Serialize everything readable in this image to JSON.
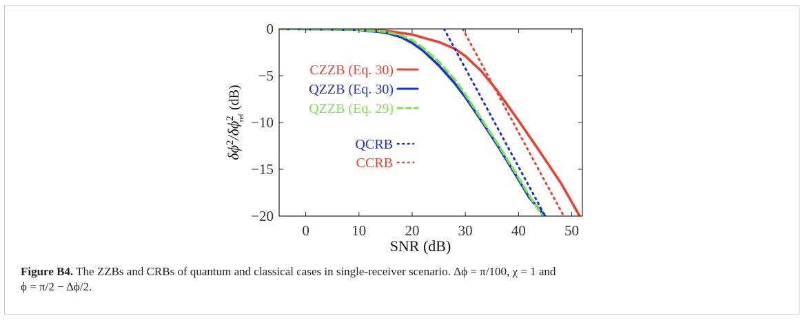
{
  "chart_data": {
    "type": "line",
    "xlabel": "SNR (dB)",
    "ylabel": {
      "main": "δϕ",
      "sup1": "2",
      "slash": "/δϕ",
      "sup2": "2",
      "sub2": "ref",
      "unit": " (dB)"
    },
    "xlim": [
      -5,
      52
    ],
    "ylim": [
      -20,
      0
    ],
    "xticks": [
      0,
      10,
      20,
      30,
      40,
      50
    ],
    "yticks": [
      0,
      -5,
      -10,
      -15,
      -20
    ],
    "xtick_labels": [
      "0",
      "10",
      "20",
      "30",
      "40",
      "50"
    ],
    "ytick_labels": [
      "0",
      "−5",
      "−10",
      "−15",
      "−20"
    ],
    "grid": false,
    "series": [
      {
        "name": "CZZB (Eq. 30)",
        "color": "#e8412f",
        "style": "solid",
        "x": [
          -5,
          10,
          15,
          20,
          25,
          28,
          30,
          33,
          36,
          40,
          44,
          48,
          51.5
        ],
        "y": [
          0,
          -0.05,
          -0.2,
          -0.6,
          -1.4,
          -2.1,
          -2.9,
          -4.5,
          -6.6,
          -9.8,
          -13.1,
          -16.5,
          -20
        ]
      },
      {
        "name": "QZZB (Eq. 30)",
        "color": "#1b2fd8",
        "style": "solid",
        "x": [
          -5,
          10,
          15,
          18,
          20,
          22,
          25,
          28,
          30,
          33,
          36,
          40,
          42,
          45
        ],
        "y": [
          0,
          -0.1,
          -0.4,
          -0.9,
          -1.5,
          -2.3,
          -3.9,
          -5.8,
          -7.3,
          -9.8,
          -12.4,
          -16.1,
          -18,
          -20
        ]
      },
      {
        "name": "QZZB (Eq. 29)",
        "color": "#77e650",
        "style": "dashed",
        "x": [
          -5,
          10,
          15,
          18,
          20,
          22,
          25,
          28,
          30,
          33,
          36,
          40,
          42,
          44.6
        ],
        "y": [
          0,
          -0.08,
          -0.3,
          -0.7,
          -1.2,
          -2.0,
          -3.5,
          -5.4,
          -7.0,
          -9.6,
          -12.2,
          -15.9,
          -17.8,
          -20
        ]
      },
      {
        "name": "QCRB",
        "color": "#1b2fd8",
        "style": "dotted",
        "x": [
          26,
          45
        ],
        "y": [
          0,
          -20
        ]
      },
      {
        "name": "CCRB",
        "color": "#e8412f",
        "style": "dotted",
        "x": [
          29.5,
          48.5
        ],
        "y": [
          0,
          -20
        ]
      }
    ]
  },
  "caption": {
    "label": "Figure B4.",
    "text": " The ZZBs and CRBs of quantum and classical cases in single-receiver scenario. ",
    "math1": "Δϕ = π/100, χ = 1",
    "mid": " and",
    "math2": "ϕ = π/2 − Δϕ/2."
  }
}
